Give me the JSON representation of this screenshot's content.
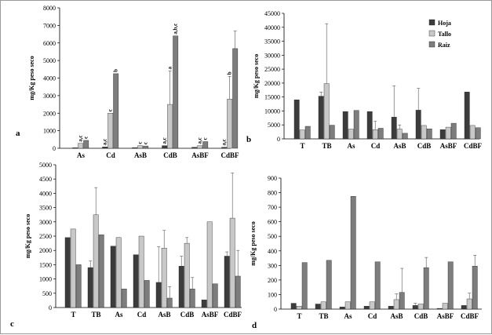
{
  "colors": {
    "hoja": "#3c3c3c",
    "tallo": "#c8c8c8",
    "raiz": "#7d7d7d",
    "axis": "#000000",
    "border": "#9a9a9a"
  },
  "legend": [
    "Hoja",
    "Tallo",
    "Raiz"
  ],
  "chart_data": [
    {
      "panel": "a",
      "type": "bar",
      "ylabel": "mg/Kg peso seco",
      "ylim": [
        0,
        8000
      ],
      "ytick_step": 1000,
      "categories": [
        "As",
        "Cd",
        "AsB",
        "CdB",
        "AsBF",
        "CdBF"
      ],
      "series": [
        {
          "values": [
            30,
            80,
            40,
            150,
            60,
            60
          ],
          "err": [
            0,
            0,
            0,
            0,
            0,
            0
          ]
        },
        {
          "values": [
            280,
            2000,
            150,
            2500,
            150,
            2800
          ],
          "err": [
            0,
            0,
            0,
            1900,
            0,
            1300
          ]
        },
        {
          "values": [
            450,
            4250,
            130,
            6400,
            380,
            5680
          ],
          "err": [
            0,
            0,
            0,
            0,
            0,
            1000
          ]
        }
      ],
      "sig_labels": [
        [
          "",
          "a,c",
          "",
          "a,c",
          "",
          "a,c"
        ],
        [
          "a,c",
          "c",
          "c",
          "a",
          "a,c",
          "b"
        ],
        [
          "c",
          "b",
          "c",
          "a,b,c",
          "c",
          ""
        ]
      ]
    },
    {
      "panel": "b",
      "type": "bar",
      "ylabel": "mg/Kg peso seco",
      "ylim": [
        0,
        45000
      ],
      "ytick_step": 5000,
      "categories": [
        "T",
        "TB",
        "As",
        "Cd",
        "AsB",
        "CdB",
        "AsBF",
        "CdBF"
      ],
      "series": [
        {
          "name": "Hoja",
          "values": [
            14000,
            15300,
            9800,
            9800,
            7800,
            10300,
            3300,
            16800
          ],
          "err": [
            0,
            1500,
            0,
            0,
            11200,
            7800,
            0,
            0
          ]
        },
        {
          "name": "Tallo",
          "values": [
            3200,
            19800,
            3500,
            3300,
            3500,
            4800,
            4200,
            4800
          ],
          "err": [
            0,
            21500,
            0,
            3000,
            1500,
            0,
            0,
            0
          ]
        },
        {
          "name": "Raiz",
          "values": [
            4500,
            4900,
            10200,
            3800,
            2000,
            3600,
            5600,
            4000
          ],
          "err": [
            0,
            0,
            0,
            0,
            0,
            0,
            0,
            0
          ]
        }
      ]
    },
    {
      "panel": "c",
      "type": "bar",
      "ylabel": "mg/Kg peso seco",
      "ylim": [
        0,
        5000
      ],
      "ytick_step": 500,
      "categories": [
        "T",
        "TB",
        "As",
        "Cd",
        "AsB",
        "CdB",
        "AsBF",
        "CdBF"
      ],
      "series": [
        {
          "values": [
            2450,
            1400,
            2150,
            1850,
            880,
            1450,
            270,
            1800
          ],
          "err": [
            0,
            230,
            0,
            0,
            1250,
            350,
            0,
            150
          ]
        },
        {
          "values": [
            2750,
            3250,
            2450,
            2500,
            2080,
            2250,
            3000,
            3130
          ],
          "err": [
            0,
            950,
            0,
            0,
            620,
            200,
            0,
            1580
          ]
        },
        {
          "values": [
            1500,
            2550,
            650,
            950,
            330,
            650,
            830,
            1100
          ],
          "err": [
            0,
            0,
            0,
            0,
            400,
            400,
            0,
            900
          ]
        }
      ]
    },
    {
      "panel": "d",
      "type": "bar",
      "ylabel": "mg/Kg peso seco",
      "ylim": [
        0,
        900
      ],
      "ytick_step": 100,
      "categories": [
        "T",
        "TB",
        "As",
        "Cd",
        "AsB",
        "CdB",
        "AsBF",
        "CdBF"
      ],
      "series": [
        {
          "values": [
            40,
            35,
            15,
            20,
            20,
            25,
            5,
            25
          ],
          "err": [
            0,
            0,
            0,
            0,
            0,
            15,
            0,
            0
          ]
        },
        {
          "values": [
            20,
            50,
            50,
            50,
            65,
            35,
            40,
            70
          ],
          "err": [
            0,
            0,
            0,
            0,
            40,
            0,
            0,
            40
          ]
        },
        {
          "values": [
            320,
            335,
            775,
            325,
            115,
            285,
            325,
            295
          ],
          "err": [
            0,
            0,
            0,
            0,
            165,
            70,
            0,
            75
          ]
        }
      ]
    }
  ]
}
